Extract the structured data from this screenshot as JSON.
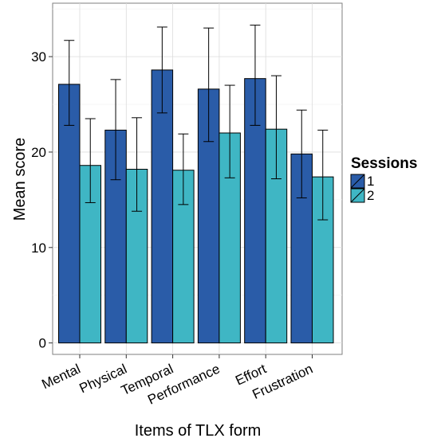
{
  "chart_data": {
    "type": "bar",
    "xlabel": "Items of TLX form",
    "ylabel": "Mean score",
    "categories": [
      "Mental",
      "Physical",
      "Temporal",
      "Performance",
      "Effort",
      "Frustration"
    ],
    "ylim": [
      -1.2,
      35.6
    ],
    "yticks": [
      0,
      10,
      20,
      30
    ],
    "grid": true,
    "legend": {
      "title": "Sessions",
      "position": "right"
    },
    "series": [
      {
        "name": "1",
        "color": "#2a5ca8",
        "values": [
          27.1,
          22.3,
          28.6,
          26.6,
          27.7,
          19.8
        ],
        "error_low": [
          22.8,
          17.1,
          24.1,
          21.1,
          22.8,
          15.2
        ],
        "error_high": [
          31.7,
          27.6,
          33.1,
          33.0,
          33.3,
          24.4
        ]
      },
      {
        "name": "2",
        "color": "#3fb6c4",
        "values": [
          18.6,
          18.2,
          18.1,
          22.0,
          22.4,
          17.4
        ],
        "error_low": [
          14.7,
          13.8,
          14.5,
          17.3,
          17.2,
          12.9
        ],
        "error_high": [
          23.5,
          23.6,
          21.9,
          27.0,
          28.0,
          22.3
        ]
      }
    ]
  }
}
